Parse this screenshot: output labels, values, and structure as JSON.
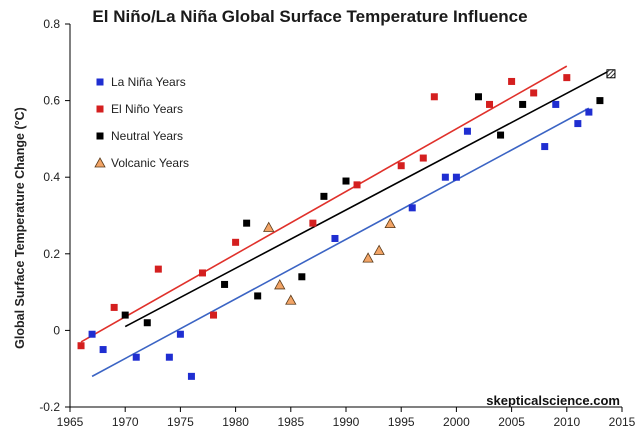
{
  "chart_data": {
    "type": "scatter",
    "title": "El Niño/La Niña Global Surface Temperature Influence",
    "xlabel": "",
    "ylabel": "Global Surface Temperature Change (°C)",
    "xlim": [
      1965,
      2015
    ],
    "ylim": [
      -0.2,
      0.8
    ],
    "xticks": [
      1965,
      1970,
      1975,
      1980,
      1985,
      1990,
      1995,
      2000,
      2005,
      2010,
      2015
    ],
    "yticks": [
      -0.2,
      0,
      0.2,
      0.4,
      0.6,
      0.8
    ],
    "yticklabels": [
      "-0.2",
      "0",
      "0.2",
      "0.4",
      "0.6",
      "0.8"
    ],
    "grid": false,
    "legend_position": "top-left",
    "credit": "skepticalscience.com",
    "series": [
      {
        "name": "La Niña Years",
        "marker": "square",
        "color": "#1f2ed1",
        "points": [
          [
            1967,
            -0.01
          ],
          [
            1968,
            -0.05
          ],
          [
            1971,
            -0.07
          ],
          [
            1974,
            -0.07
          ],
          [
            1975,
            -0.01
          ],
          [
            1976,
            -0.12
          ],
          [
            1989,
            0.24
          ],
          [
            1996,
            0.32
          ],
          [
            1999,
            0.4
          ],
          [
            2000,
            0.4
          ],
          [
            2001,
            0.52
          ],
          [
            2008,
            0.48
          ],
          [
            2009,
            0.59
          ],
          [
            2011,
            0.54
          ],
          [
            2012,
            0.57
          ]
        ],
        "trend": [
          [
            1967,
            -0.12
          ],
          [
            2012,
            0.58
          ]
        ],
        "trend_color": "#3b64c4"
      },
      {
        "name": "El Niño Years",
        "marker": "square",
        "color": "#d41f1f",
        "points": [
          [
            1966,
            -0.04
          ],
          [
            1969,
            0.06
          ],
          [
            1973,
            0.16
          ],
          [
            1977,
            0.15
          ],
          [
            1978,
            0.04
          ],
          [
            1980,
            0.23
          ],
          [
            1987,
            0.28
          ],
          [
            1991,
            0.38
          ],
          [
            1995,
            0.43
          ],
          [
            1997,
            0.45
          ],
          [
            1998,
            0.61
          ],
          [
            2003,
            0.59
          ],
          [
            2005,
            0.65
          ],
          [
            2007,
            0.62
          ],
          [
            2010,
            0.66
          ]
        ],
        "trend": [
          [
            1966,
            -0.03
          ],
          [
            2010,
            0.69
          ]
        ],
        "trend_color": "#e0312b"
      },
      {
        "name": "Neutral Years",
        "marker": "square",
        "color": "#000000",
        "points": [
          [
            1970,
            0.04
          ],
          [
            1972,
            0.02
          ],
          [
            1979,
            0.12
          ],
          [
            1981,
            0.28
          ],
          [
            1982,
            0.09
          ],
          [
            1986,
            0.14
          ],
          [
            1988,
            0.35
          ],
          [
            1990,
            0.39
          ],
          [
            2002,
            0.61
          ],
          [
            2004,
            0.51
          ],
          [
            2006,
            0.59
          ],
          [
            2013,
            0.6
          ]
        ],
        "trend": [
          [
            1970,
            0.01
          ],
          [
            2014,
            0.68
          ]
        ],
        "trend_color": "#000000"
      },
      {
        "name": "Volcanic Years",
        "marker": "triangle",
        "color": "#f2a466",
        "points": [
          [
            1983,
            0.27
          ],
          [
            1984,
            0.12
          ],
          [
            1985,
            0.08
          ],
          [
            1992,
            0.19
          ],
          [
            1993,
            0.21
          ],
          [
            1994,
            0.28
          ]
        ]
      }
    ],
    "annotations": [
      {
        "label": "2014 (hatched)",
        "x": 2014,
        "y": 0.67,
        "marker": "hatched-square"
      }
    ]
  }
}
